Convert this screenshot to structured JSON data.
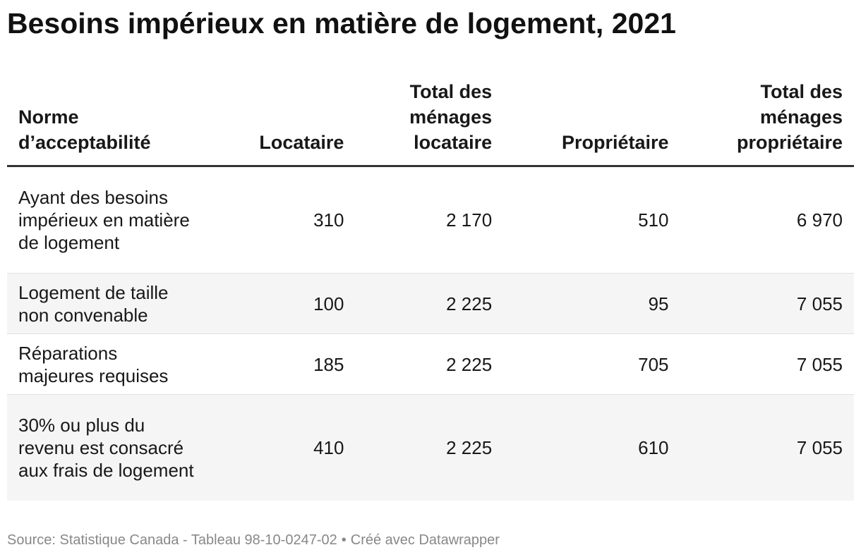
{
  "title": "Besoins impérieux en matière de logement, 2021",
  "footer": {
    "source": "Source: Statistique Canada - Tableau 98-10-0247-02",
    "separator": "•",
    "credit": "Créé avec Datawrapper"
  },
  "chart_data": {
    "type": "table",
    "columns": [
      "Norme d’acceptabilité",
      "Locataire",
      "Total des ménages locataire",
      "Propriétaire",
      "Total des ménages propriétaire"
    ],
    "rows": [
      {
        "label": "Ayant des besoins impérieux en matière de logement",
        "values": [
          "310",
          "2 170",
          "510",
          "6 970"
        ]
      },
      {
        "label": "Logement de taille non convenable",
        "values": [
          "100",
          "2 225",
          "95",
          "7 055"
        ]
      },
      {
        "label": "Réparations majeures requises",
        "values": [
          "185",
          "2 225",
          "705",
          "7 055"
        ]
      },
      {
        "label": "30% ou plus du revenu est consacré aux frais de logement",
        "values": [
          "410",
          "2 225",
          "610",
          "7 055"
        ]
      }
    ]
  }
}
